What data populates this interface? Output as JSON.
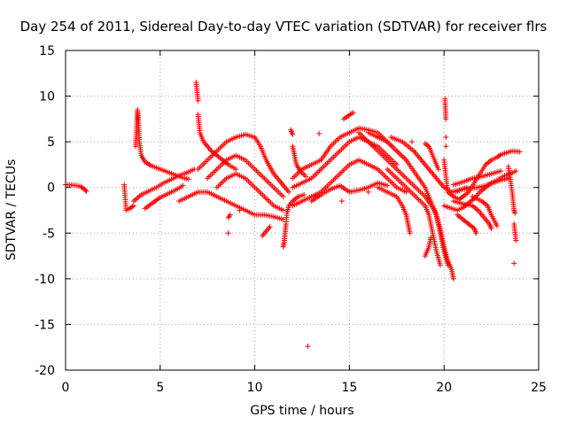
{
  "chart_data": {
    "type": "scatter",
    "title": "Day 254 of 2011, Sidereal Day-to-day VTEC variation (SDTVAR) for receiver flrs",
    "xlabel": "GPS time / hours",
    "ylabel": "SDTVAR / TECUs",
    "xlim": [
      0,
      25
    ],
    "ylim": [
      -20,
      15
    ],
    "xticks": [
      "0",
      "5",
      "10",
      "15",
      "20",
      "25"
    ],
    "yticks": [
      "15",
      "10",
      "5",
      "0",
      "-5",
      "-10",
      "-15",
      "-20"
    ],
    "grid": true,
    "marker": "+",
    "color": "#ff0000",
    "series": [
      {
        "name": "",
        "points": [
          [
            0.0,
            0.3
          ],
          [
            0.2,
            0.3
          ],
          [
            0.4,
            0.25
          ],
          [
            0.6,
            0.2
          ],
          [
            0.8,
            0.1
          ],
          [
            1.0,
            -0.2
          ],
          [
            1.1,
            -0.4
          ],
          [
            3.1,
            0.3
          ],
          [
            3.2,
            -2.5
          ],
          [
            3.4,
            -2.3
          ],
          [
            3.6,
            -2.0
          ],
          [
            3.7,
            4.5
          ],
          [
            3.75,
            6.5
          ],
          [
            3.8,
            8.5
          ],
          [
            3.85,
            7.5
          ],
          [
            3.9,
            5.0
          ],
          [
            4.0,
            3.5
          ],
          [
            4.2,
            2.8
          ],
          [
            4.5,
            2.4
          ],
          [
            5.0,
            2.0
          ],
          [
            5.5,
            1.6
          ],
          [
            6.0,
            1.2
          ],
          [
            6.5,
            0.9
          ],
          [
            3.6,
            -1.5
          ],
          [
            4.0,
            -0.8
          ],
          [
            4.4,
            -0.4
          ],
          [
            4.8,
            0.0
          ],
          [
            5.2,
            0.5
          ],
          [
            5.6,
            0.9
          ],
          [
            6.0,
            1.3
          ],
          [
            6.4,
            1.6
          ],
          [
            6.8,
            2.0
          ],
          [
            4.2,
            -2.3
          ],
          [
            4.6,
            -1.7
          ],
          [
            5.0,
            -1.1
          ],
          [
            5.4,
            -0.7
          ],
          [
            5.8,
            -0.3
          ],
          [
            6.2,
            0.2
          ],
          [
            6.9,
            11.5
          ],
          [
            7.0,
            9.5
          ],
          [
            7.0,
            8.0
          ],
          [
            7.1,
            6.0
          ],
          [
            7.3,
            5.0
          ],
          [
            7.5,
            4.5
          ],
          [
            7.7,
            4.0
          ],
          [
            8.0,
            3.5
          ],
          [
            8.3,
            3.0
          ],
          [
            8.6,
            2.5
          ],
          [
            9.0,
            2.0
          ],
          [
            6.0,
            -1.5
          ],
          [
            6.5,
            -1.0
          ],
          [
            7.0,
            -0.5
          ],
          [
            7.5,
            -0.5
          ],
          [
            8.0,
            -1.0
          ],
          [
            8.5,
            -1.5
          ],
          [
            9.0,
            -2.0
          ],
          [
            9.5,
            -2.5
          ],
          [
            10.0,
            -3.0
          ],
          [
            10.5,
            -3.0
          ],
          [
            11.0,
            -3.2
          ],
          [
            11.5,
            -3.5
          ],
          [
            7.0,
            2.0
          ],
          [
            7.5,
            3.0
          ],
          [
            8.0,
            4.0
          ],
          [
            8.5,
            5.0
          ],
          [
            9.0,
            5.5
          ],
          [
            9.5,
            5.8
          ],
          [
            10.0,
            5.5
          ],
          [
            10.3,
            4.5
          ],
          [
            10.6,
            3.0
          ],
          [
            11.0,
            1.5
          ],
          [
            11.4,
            0.5
          ],
          [
            11.8,
            -0.5
          ],
          [
            7.5,
            1.0
          ],
          [
            8.0,
            2.0
          ],
          [
            8.5,
            3.0
          ],
          [
            9.0,
            3.5
          ],
          [
            9.5,
            3.0
          ],
          [
            10.0,
            2.0
          ],
          [
            10.5,
            1.0
          ],
          [
            11.0,
            0.0
          ],
          [
            11.5,
            -1.0
          ],
          [
            8.0,
            0.0
          ],
          [
            8.5,
            1.0
          ],
          [
            9.0,
            1.5
          ],
          [
            9.5,
            1.0
          ],
          [
            10.0,
            0.0
          ],
          [
            10.5,
            -1.0
          ],
          [
            11.0,
            -2.0
          ],
          [
            11.5,
            -2.5
          ],
          [
            8.6,
            -5.0
          ],
          [
            8.6,
            -3.3
          ],
          [
            8.7,
            -3.0
          ],
          [
            10.4,
            -5.3
          ],
          [
            10.8,
            -4.3
          ],
          [
            9.2,
            -2.5
          ],
          [
            11.5,
            -6.5
          ],
          [
            11.55,
            -6.0
          ],
          [
            11.6,
            -5.0
          ],
          [
            11.65,
            -4.0
          ],
          [
            11.7,
            -2.8
          ],
          [
            11.8,
            -2.0
          ],
          [
            12.0,
            -1.5
          ],
          [
            12.3,
            -1.0
          ],
          [
            12.6,
            -0.8
          ],
          [
            11.9,
            6.3
          ],
          [
            12.0,
            5.8
          ],
          [
            12.0,
            4.5
          ],
          [
            12.1,
            3.5
          ],
          [
            12.2,
            2.5
          ],
          [
            12.4,
            1.8
          ],
          [
            12.7,
            1.2
          ],
          [
            12.0,
            1.0
          ],
          [
            12.5,
            2.0
          ],
          [
            13.0,
            2.5
          ],
          [
            13.5,
            3.0
          ],
          [
            14.0,
            4.5
          ],
          [
            14.5,
            5.5
          ],
          [
            15.0,
            6.0
          ],
          [
            15.5,
            6.5
          ],
          [
            16.0,
            6.3
          ],
          [
            16.5,
            6.0
          ],
          [
            17.0,
            5.0
          ],
          [
            17.5,
            4.0
          ],
          [
            18.0,
            3.0
          ],
          [
            12.0,
            0.0
          ],
          [
            12.5,
            0.5
          ],
          [
            13.0,
            1.0
          ],
          [
            13.5,
            2.0
          ],
          [
            14.0,
            3.0
          ],
          [
            14.5,
            4.0
          ],
          [
            15.0,
            5.0
          ],
          [
            15.5,
            5.5
          ],
          [
            16.0,
            5.0
          ],
          [
            16.5,
            4.5
          ],
          [
            17.0,
            3.5
          ],
          [
            17.5,
            2.5
          ],
          [
            12.0,
            -2.0
          ],
          [
            12.5,
            -1.5
          ],
          [
            13.0,
            -1.0
          ],
          [
            13.5,
            -0.5
          ],
          [
            14.0,
            0.5
          ],
          [
            14.5,
            1.5
          ],
          [
            15.0,
            2.5
          ],
          [
            15.5,
            3.0
          ],
          [
            16.0,
            2.5
          ],
          [
            16.5,
            2.0
          ],
          [
            17.0,
            1.0
          ],
          [
            17.5,
            0.0
          ],
          [
            18.0,
            -0.5
          ],
          [
            13.0,
            -1.5
          ],
          [
            13.5,
            -0.8
          ],
          [
            14.0,
            -0.2
          ],
          [
            14.5,
            0.2
          ],
          [
            15.0,
            -0.5
          ],
          [
            15.5,
            -0.3
          ],
          [
            16.0,
            0.0
          ],
          [
            16.5,
            0.5
          ],
          [
            17.0,
            0.2
          ],
          [
            12.8,
            -17.4
          ],
          [
            13.4,
            5.9
          ],
          [
            14.7,
            7.5
          ],
          [
            15.2,
            8.2
          ],
          [
            14.6,
            -1.5
          ],
          [
            16.0,
            -0.5
          ],
          [
            15.5,
            6.0
          ],
          [
            16.0,
            5.0
          ],
          [
            16.5,
            4.0
          ],
          [
            17.0,
            3.0
          ],
          [
            17.5,
            2.0
          ],
          [
            18.0,
            1.0
          ],
          [
            18.5,
            0.0
          ],
          [
            19.0,
            -1.0
          ],
          [
            19.5,
            -2.5
          ],
          [
            19.8,
            -4.5
          ],
          [
            20.0,
            -6.5
          ],
          [
            20.2,
            -8.0
          ],
          [
            20.4,
            -9.0
          ],
          [
            20.5,
            -10.0
          ],
          [
            16.0,
            6.0
          ],
          [
            16.5,
            5.5
          ],
          [
            17.0,
            5.0
          ],
          [
            17.5,
            4.0
          ],
          [
            18.0,
            3.0
          ],
          [
            18.5,
            1.5
          ],
          [
            19.0,
            0.0
          ],
          [
            19.3,
            -1.5
          ],
          [
            19.6,
            -3.0
          ],
          [
            19.8,
            -5.0
          ],
          [
            20.0,
            -7.0
          ],
          [
            20.2,
            -8.5
          ],
          [
            17.0,
            2.0
          ],
          [
            17.5,
            1.0
          ],
          [
            18.0,
            0.0
          ],
          [
            18.5,
            -1.0
          ],
          [
            19.0,
            -2.0
          ],
          [
            19.2,
            -3.0
          ],
          [
            19.4,
            -5.0
          ],
          [
            19.6,
            -7.0
          ],
          [
            19.8,
            -8.5
          ],
          [
            16.5,
            0.0
          ],
          [
            17.0,
            -0.5
          ],
          [
            17.5,
            -1.0
          ],
          [
            17.8,
            -2.0
          ],
          [
            18.0,
            -3.0
          ],
          [
            18.1,
            -4.0
          ],
          [
            18.2,
            -5.0
          ],
          [
            18.3,
            5.0
          ],
          [
            19.0,
            4.8
          ],
          [
            19.2,
            4.5
          ],
          [
            19.5,
            3.0
          ],
          [
            19.7,
            2.0
          ],
          [
            17.2,
            5.5
          ],
          [
            17.8,
            5.0
          ],
          [
            18.4,
            4.0
          ],
          [
            18.8,
            3.0
          ],
          [
            19.2,
            2.0
          ],
          [
            19.6,
            1.0
          ],
          [
            20.0,
            0.0
          ],
          [
            20.4,
            -0.5
          ],
          [
            20.8,
            -0.3
          ],
          [
            21.2,
            0.0
          ],
          [
            19.0,
            -7.5
          ],
          [
            19.2,
            -6.5
          ],
          [
            19.3,
            -5.5
          ],
          [
            20.05,
            9.7
          ],
          [
            20.1,
            7.5
          ],
          [
            20.1,
            5.5
          ],
          [
            20.1,
            4.5
          ],
          [
            20.0,
            3.0
          ],
          [
            20.2,
            -0.5
          ],
          [
            20.5,
            -1.0
          ],
          [
            20.8,
            -1.3
          ],
          [
            21.0,
            -1.0
          ],
          [
            21.3,
            -0.5
          ],
          [
            21.6,
            0.5
          ],
          [
            21.9,
            1.5
          ],
          [
            22.2,
            2.5
          ],
          [
            22.5,
            3.0
          ],
          [
            22.8,
            3.3
          ],
          [
            23.0,
            3.6
          ],
          [
            23.3,
            3.8
          ],
          [
            23.6,
            4.0
          ],
          [
            24.0,
            3.9
          ],
          [
            20.0,
            -2.0
          ],
          [
            20.4,
            -2.3
          ],
          [
            20.7,
            -2.5
          ],
          [
            21.0,
            -2.2
          ],
          [
            21.3,
            -1.7
          ],
          [
            21.6,
            -1.2
          ],
          [
            21.9,
            -0.5
          ],
          [
            22.2,
            0.0
          ],
          [
            22.5,
            0.5
          ],
          [
            22.8,
            0.8
          ],
          [
            23.2,
            1.3
          ],
          [
            23.5,
            1.5
          ],
          [
            23.8,
            1.8
          ],
          [
            20.5,
            0.3
          ],
          [
            21.0,
            0.6
          ],
          [
            21.5,
            1.0
          ],
          [
            22.0,
            1.2
          ],
          [
            22.5,
            1.5
          ],
          [
            23.0,
            1.8
          ],
          [
            20.6,
            -0.5
          ],
          [
            21.0,
            -0.2
          ],
          [
            21.4,
            -0.1
          ],
          [
            21.8,
            0.0
          ],
          [
            22.2,
            0.2
          ],
          [
            22.6,
            0.5
          ],
          [
            23.0,
            0.8
          ],
          [
            23.4,
            1.0
          ],
          [
            20.7,
            -3.0
          ],
          [
            21.0,
            -3.5
          ],
          [
            21.3,
            -4.0
          ],
          [
            21.6,
            -4.5
          ],
          [
            21.7,
            -5.0
          ],
          [
            20.5,
            -1.5
          ],
          [
            21.0,
            -1.8
          ],
          [
            21.5,
            -2.0
          ],
          [
            21.8,
            -2.5
          ],
          [
            22.0,
            -3.0
          ],
          [
            22.2,
            -3.5
          ],
          [
            22.4,
            -4.0
          ],
          [
            22.5,
            -4.5
          ],
          [
            21.5,
            -1.0
          ],
          [
            22.0,
            -1.5
          ],
          [
            22.3,
            -2.0
          ],
          [
            22.5,
            -3.0
          ],
          [
            22.7,
            -3.8
          ],
          [
            22.8,
            -4.2
          ],
          [
            23.4,
            2.3
          ],
          [
            23.6,
            -0.5
          ],
          [
            23.7,
            -2.5
          ],
          [
            23.75,
            -2.8
          ],
          [
            23.7,
            -4.0
          ],
          [
            23.8,
            -5.8
          ],
          [
            23.7,
            -8.3
          ]
        ]
      }
    ]
  }
}
